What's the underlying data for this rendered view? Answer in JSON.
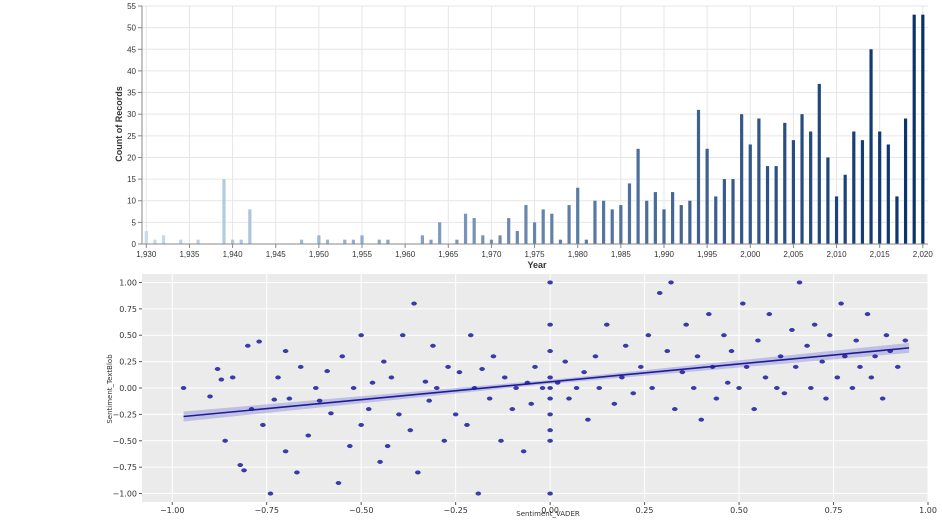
{
  "chart_data": [
    {
      "type": "bar",
      "xlabel": "Year",
      "ylabel": "Count of Records",
      "ylim": [
        0,
        55
      ],
      "yticks": [
        0,
        5,
        10,
        15,
        20,
        25,
        30,
        35,
        40,
        45,
        50,
        55
      ],
      "xticks": [
        "1,930",
        "1,935",
        "1,940",
        "1,945",
        "1,950",
        "1,955",
        "1,960",
        "1,965",
        "1,970",
        "1,975",
        "1,980",
        "1,985",
        "1,990",
        "1,995",
        "2,000",
        "2,005",
        "2,010",
        "2,015",
        "2,020"
      ],
      "grid": true,
      "color_scale": [
        "#c6dbef",
        "#08306b"
      ],
      "x": [
        1930,
        1931,
        1932,
        1934,
        1936,
        1939,
        1940,
        1941,
        1942,
        1948,
        1950,
        1951,
        1953,
        1954,
        1955,
        1957,
        1958,
        1962,
        1963,
        1964,
        1966,
        1967,
        1968,
        1969,
        1970,
        1971,
        1972,
        1973,
        1974,
        1975,
        1976,
        1977,
        1978,
        1979,
        1980,
        1981,
        1982,
        1983,
        1984,
        1985,
        1986,
        1987,
        1988,
        1989,
        1990,
        1991,
        1992,
        1993,
        1994,
        1995,
        1996,
        1997,
        1998,
        1999,
        2000,
        2001,
        2002,
        2003,
        2004,
        2005,
        2006,
        2007,
        2008,
        2009,
        2010,
        2011,
        2012,
        2013,
        2014,
        2015,
        2016,
        2017,
        2018,
        2019,
        2020
      ],
      "values": [
        3,
        1,
        2,
        1,
        1,
        15,
        1,
        1,
        8,
        1,
        2,
        1,
        1,
        1,
        2,
        1,
        1,
        2,
        1,
        5,
        1,
        7,
        6,
        2,
        1,
        2,
        6,
        3,
        9,
        5,
        8,
        7,
        1,
        9,
        13,
        1,
        10,
        10,
        8,
        9,
        14,
        22,
        10,
        12,
        8,
        12,
        9,
        10,
        31,
        22,
        11,
        15,
        15,
        30,
        23,
        29,
        18,
        18,
        28,
        24,
        30,
        26,
        37,
        20,
        11,
        16,
        26,
        24,
        45,
        26,
        23,
        11,
        29,
        53,
        53
      ]
    },
    {
      "type": "scatter",
      "xlabel": "Sentiment_VADER",
      "ylabel": "Sentiment_TextBlob",
      "xlim": [
        -1.08,
        1.0
      ],
      "ylim": [
        -1.08,
        1.08
      ],
      "xticks": [
        "−1.00",
        "−0.75",
        "−0.50",
        "−0.25",
        "0.00",
        "0.25",
        "0.50",
        "0.75",
        "1.00"
      ],
      "yticks": [
        "−1.00",
        "−0.75",
        "−0.50",
        "−0.25",
        "0.00",
        "0.25",
        "0.50",
        "0.75",
        "1.00"
      ],
      "grid": true,
      "background": "#ebebeb",
      "point_color": "#1a1aa8",
      "regression": {
        "x": [
          -0.97,
          0.95
        ],
        "y": [
          -0.27,
          0.38
        ]
      },
      "points": [
        [
          -0.97,
          0
        ],
        [
          -0.9,
          -0.08
        ],
        [
          -0.88,
          0.18
        ],
        [
          -0.87,
          0.08
        ],
        [
          -0.86,
          -0.5
        ],
        [
          -0.84,
          0.1
        ],
        [
          -0.82,
          -0.73
        ],
        [
          -0.81,
          -0.78
        ],
        [
          -0.8,
          0.4
        ],
        [
          -0.79,
          -0.2
        ],
        [
          -0.77,
          0.44
        ],
        [
          -0.76,
          -0.35
        ],
        [
          -0.74,
          -1.0
        ],
        [
          -0.73,
          -0.11
        ],
        [
          -0.72,
          0.1
        ],
        [
          -0.7,
          0.35
        ],
        [
          -0.7,
          -0.6
        ],
        [
          -0.69,
          -0.1
        ],
        [
          -0.67,
          -0.8
        ],
        [
          -0.66,
          0.2
        ],
        [
          -0.64,
          -0.45
        ],
        [
          -0.62,
          0.0
        ],
        [
          -0.61,
          -0.12
        ],
        [
          -0.59,
          0.16
        ],
        [
          -0.58,
          -0.24
        ],
        [
          -0.56,
          -0.9
        ],
        [
          -0.55,
          0.3
        ],
        [
          -0.53,
          -0.55
        ],
        [
          -0.52,
          0.0
        ],
        [
          -0.5,
          -0.35
        ],
        [
          -0.5,
          0.5
        ],
        [
          -0.48,
          -0.2
        ],
        [
          -0.47,
          0.05
        ],
        [
          -0.45,
          -0.7
        ],
        [
          -0.44,
          0.25
        ],
        [
          -0.43,
          -0.55
        ],
        [
          -0.42,
          0.1
        ],
        [
          -0.4,
          -0.25
        ],
        [
          -0.39,
          0.5
        ],
        [
          -0.37,
          -0.4
        ],
        [
          -0.36,
          0.8
        ],
        [
          -0.35,
          -0.8
        ],
        [
          -0.33,
          0.06
        ],
        [
          -0.32,
          -0.12
        ],
        [
          -0.31,
          0.4
        ],
        [
          -0.3,
          0.0
        ],
        [
          -0.28,
          -0.5
        ],
        [
          -0.27,
          0.2
        ],
        [
          -0.25,
          -0.25
        ],
        [
          -0.24,
          0.15
        ],
        [
          -0.22,
          -0.35
        ],
        [
          -0.21,
          0.5
        ],
        [
          -0.2,
          0.0
        ],
        [
          -0.19,
          -1.0
        ],
        [
          -0.18,
          0.18
        ],
        [
          -0.16,
          -0.1
        ],
        [
          -0.15,
          0.3
        ],
        [
          -0.13,
          -0.5
        ],
        [
          -0.12,
          0.1
        ],
        [
          -0.1,
          -0.2
        ],
        [
          -0.09,
          0.0
        ],
        [
          -0.07,
          -0.6
        ],
        [
          -0.06,
          0.05
        ],
        [
          -0.05,
          -0.15
        ],
        [
          -0.04,
          0.2
        ],
        [
          -0.02,
          0.0
        ],
        [
          0.0,
          1.0
        ],
        [
          0.0,
          0.6
        ],
        [
          0.0,
          0.35
        ],
        [
          0.0,
          0.1
        ],
        [
          0.0,
          0.0
        ],
        [
          0.0,
          -0.1
        ],
        [
          0.0,
          -0.25
        ],
        [
          0.0,
          -0.4
        ],
        [
          0.0,
          -0.5
        ],
        [
          0.0,
          -1.0
        ],
        [
          0.02,
          0.05
        ],
        [
          0.04,
          0.25
        ],
        [
          0.05,
          -0.1
        ],
        [
          0.07,
          0.0
        ],
        [
          0.09,
          0.15
        ],
        [
          0.1,
          -0.3
        ],
        [
          0.12,
          0.3
        ],
        [
          0.13,
          0.0
        ],
        [
          0.15,
          0.6
        ],
        [
          0.17,
          -0.15
        ],
        [
          0.19,
          0.1
        ],
        [
          0.2,
          0.4
        ],
        [
          0.22,
          -0.05
        ],
        [
          0.24,
          0.2
        ],
        [
          0.26,
          0.5
        ],
        [
          0.27,
          0.0
        ],
        [
          0.29,
          0.9
        ],
        [
          0.31,
          0.35
        ],
        [
          0.32,
          1.0
        ],
        [
          0.33,
          -0.2
        ],
        [
          0.35,
          0.15
        ],
        [
          0.36,
          0.6
        ],
        [
          0.38,
          0.0
        ],
        [
          0.39,
          0.3
        ],
        [
          0.4,
          -0.3
        ],
        [
          0.42,
          0.7
        ],
        [
          0.43,
          0.2
        ],
        [
          0.44,
          -0.1
        ],
        [
          0.46,
          0.5
        ],
        [
          0.47,
          0.05
        ],
        [
          0.48,
          0.35
        ],
        [
          0.5,
          0.0
        ],
        [
          0.51,
          0.8
        ],
        [
          0.52,
          0.2
        ],
        [
          0.54,
          -0.2
        ],
        [
          0.55,
          0.45
        ],
        [
          0.57,
          0.1
        ],
        [
          0.58,
          0.7
        ],
        [
          0.6,
          0.0
        ],
        [
          0.61,
          0.3
        ],
        [
          0.62,
          -0.05
        ],
        [
          0.64,
          0.55
        ],
        [
          0.65,
          0.2
        ],
        [
          0.66,
          1.0
        ],
        [
          0.68,
          0.4
        ],
        [
          0.69,
          0.0
        ],
        [
          0.7,
          0.6
        ],
        [
          0.72,
          0.25
        ],
        [
          0.73,
          -0.1
        ],
        [
          0.74,
          0.5
        ],
        [
          0.76,
          0.1
        ],
        [
          0.77,
          0.8
        ],
        [
          0.78,
          0.3
        ],
        [
          0.8,
          0.0
        ],
        [
          0.81,
          0.45
        ],
        [
          0.82,
          0.2
        ],
        [
          0.84,
          0.7
        ],
        [
          0.85,
          0.1
        ],
        [
          0.86,
          0.3
        ],
        [
          0.88,
          -0.1
        ],
        [
          0.89,
          0.5
        ],
        [
          0.9,
          0.35
        ],
        [
          0.92,
          0.2
        ],
        [
          0.94,
          0.45
        ]
      ]
    }
  ]
}
